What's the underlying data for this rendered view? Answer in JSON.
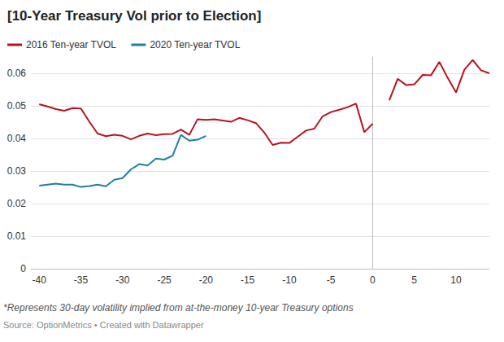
{
  "chart_data": {
    "type": "line",
    "title": "[10-Year Treasury Vol prior to Election]",
    "note": "*Represents 30-day volatility implied from at-the-money 10-year Treasury options",
    "source": "Source: OptionMetrics • Created with Datawrapper",
    "legend": "top-left",
    "grid": true,
    "xlim": [
      -41,
      14
    ],
    "xticks": [
      -40,
      -35,
      -30,
      -25,
      -20,
      -15,
      -10,
      -5,
      0,
      5,
      10
    ],
    "ylim": [
      0,
      0.065
    ],
    "yticks": [
      0,
      0.01,
      0.02,
      0.03,
      0.04,
      0.05,
      0.06
    ],
    "series": [
      {
        "name": "2016 Ten-year TVOL",
        "color": "#b8141e",
        "x": [
          -40,
          -39,
          -38,
          -37,
          -36,
          -35,
          -34,
          -33,
          -32,
          -31,
          -30,
          -29,
          -28,
          -27,
          -26,
          -25,
          -24,
          -23,
          -22,
          -21,
          -20,
          -19,
          -18,
          -17,
          -16,
          -15,
          -14,
          -13,
          -12,
          -11,
          -10,
          -9,
          -8,
          -7,
          -6,
          -5,
          -4,
          -3,
          -2,
          -1,
          0,
          1,
          2,
          3,
          4,
          5,
          6,
          7,
          8,
          9,
          10,
          11,
          12,
          13,
          14
        ],
        "values": [
          0.0505,
          0.0498,
          0.049,
          0.0485,
          0.0493,
          0.0492,
          0.0452,
          0.0415,
          0.0407,
          0.0411,
          0.0408,
          0.0397,
          0.0408,
          0.0415,
          0.041,
          0.0413,
          0.0414,
          0.0427,
          0.0411,
          0.0459,
          0.0457,
          0.0459,
          0.0455,
          0.0451,
          0.0463,
          0.0456,
          0.0447,
          0.0418,
          0.038,
          0.0387,
          0.0386,
          0.0405,
          0.0424,
          0.043,
          0.0468,
          0.0481,
          0.0488,
          0.0496,
          0.0507,
          0.0419,
          0.0445,
          null,
          0.0517,
          0.0583,
          0.0564,
          0.0566,
          0.0595,
          0.0594,
          0.0635,
          0.0586,
          0.0541,
          0.0611,
          0.0641,
          0.0609,
          0.06
        ]
      },
      {
        "name": "2020 Ten-year TVOL",
        "color": "#1d81a2",
        "x": [
          -40,
          -39,
          -38,
          -37,
          -36,
          -35,
          -34,
          -33,
          -32,
          -31,
          -30,
          -29,
          -28,
          -27,
          -26,
          -25,
          -24,
          -23,
          -22,
          -21,
          -20
        ],
        "values": [
          0.0255,
          0.0258,
          0.0261,
          0.0258,
          0.0258,
          0.0251,
          0.0254,
          0.0258,
          0.0253,
          0.0273,
          0.0278,
          0.0305,
          0.0321,
          0.0317,
          0.0338,
          0.0335,
          0.0347,
          0.0411,
          0.0393,
          0.0396,
          0.0408
        ]
      }
    ]
  }
}
